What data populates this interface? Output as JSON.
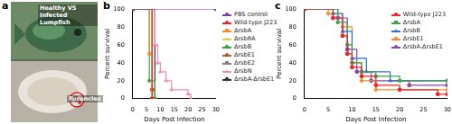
{
  "panel_a": {
    "panel": "a",
    "title": "Healthy VS Infected Lumpfish",
    "annotation": "Furuncles"
  },
  "chart_data": [
    {
      "panel": "b",
      "type": "line",
      "x_label": "Days Post Infection",
      "y_label": "Percent survival",
      "xlim": [
        0,
        30
      ],
      "xticks": [
        0,
        5,
        10,
        15,
        20,
        25,
        30
      ],
      "ylim": [
        0,
        100
      ],
      "yticks": [
        0,
        20,
        40,
        60,
        80,
        100
      ],
      "grid": false,
      "legend": "right",
      "line_style": "stepped",
      "series": [
        {
          "name": "PBS control",
          "color": "#7b3fa0",
          "marker": "circle",
          "x": [
            0,
            30
          ],
          "values": [
            100,
            100
          ]
        },
        {
          "name": "Wild-type J223",
          "color": "#e8262b",
          "marker": "circle",
          "x": [
            0,
            7
          ],
          "values": [
            100,
            0
          ]
        },
        {
          "name": "ΔrsbA",
          "color": "#f28e2b",
          "marker": "rect",
          "x": [
            0,
            6,
            7
          ],
          "values": [
            100,
            50,
            0
          ]
        },
        {
          "name": "ΔrsbRA",
          "color": "#e9c84a",
          "marker": "triangle",
          "x": [
            0,
            7
          ],
          "values": [
            100,
            0
          ]
        },
        {
          "name": "ΔrsbB",
          "color": "#3aa548",
          "marker": "rectRot",
          "x": [
            0,
            6,
            8
          ],
          "values": [
            100,
            20,
            0
          ]
        },
        {
          "name": "ΔrsbE1",
          "color": "#b35a2a",
          "marker": "circle",
          "x": [
            0,
            7,
            8
          ],
          "values": [
            100,
            10,
            0
          ]
        },
        {
          "name": "ΔrsbE2",
          "color": "#808080",
          "marker": "rect",
          "x": [
            0,
            7
          ],
          "values": [
            100,
            0
          ]
        },
        {
          "name": "ΔrsbN",
          "color": "#f08cb8",
          "marker": "triangle",
          "x": [
            0,
            8,
            9,
            10,
            12,
            14,
            20,
            21
          ],
          "values": [
            100,
            60,
            40,
            30,
            20,
            10,
            5,
            0
          ]
        },
        {
          "name": "ΔrsbA-ΔrsbE1",
          "color": "#333333",
          "marker": "rectRot",
          "x": [
            0,
            8
          ],
          "values": [
            100,
            0
          ]
        }
      ]
    },
    {
      "panel": "c",
      "type": "line",
      "x_label": "Days Post Infection",
      "y_label": "Percent survival",
      "xlim": [
        0,
        30
      ],
      "xticks": [
        0,
        5,
        10,
        15,
        20,
        25,
        30
      ],
      "ylim": [
        0,
        100
      ],
      "yticks": [
        0,
        20,
        40,
        60,
        80,
        100
      ],
      "grid": false,
      "legend": "upper right",
      "line_style": "stepped",
      "series": [
        {
          "name": "Wild-type J223",
          "color": "#e8262b",
          "marker": "circle",
          "x": [
            0,
            6,
            8,
            9,
            10,
            12,
            15,
            20,
            28,
            30
          ],
          "values": [
            100,
            90,
            70,
            50,
            35,
            25,
            15,
            10,
            5,
            5
          ]
        },
        {
          "name": "ΔrsbA",
          "color": "#3aa548",
          "marker": "rect",
          "x": [
            0,
            7,
            9,
            10,
            12,
            15,
            20,
            30
          ],
          "values": [
            100,
            85,
            60,
            40,
            30,
            25,
            20,
            20
          ]
        },
        {
          "name": "ΔrsbB",
          "color": "#2f6fd0",
          "marker": "triangle",
          "x": [
            0,
            6,
            8,
            10,
            13,
            18,
            30
          ],
          "values": [
            100,
            95,
            75,
            45,
            30,
            20,
            20
          ]
        },
        {
          "name": "ΔrsbE1",
          "color": "#f28e2b",
          "marker": "rectRot",
          "x": [
            0,
            5,
            8,
            10,
            12,
            15,
            30
          ],
          "values": [
            100,
            95,
            80,
            40,
            20,
            10,
            10
          ]
        },
        {
          "name": "ΔrsbA-ΔrsbE1",
          "color": "#8e44ad",
          "marker": "circle",
          "x": [
            0,
            7,
            9,
            11,
            14,
            22,
            30
          ],
          "values": [
            100,
            90,
            55,
            30,
            20,
            15,
            15
          ]
        }
      ]
    }
  ]
}
